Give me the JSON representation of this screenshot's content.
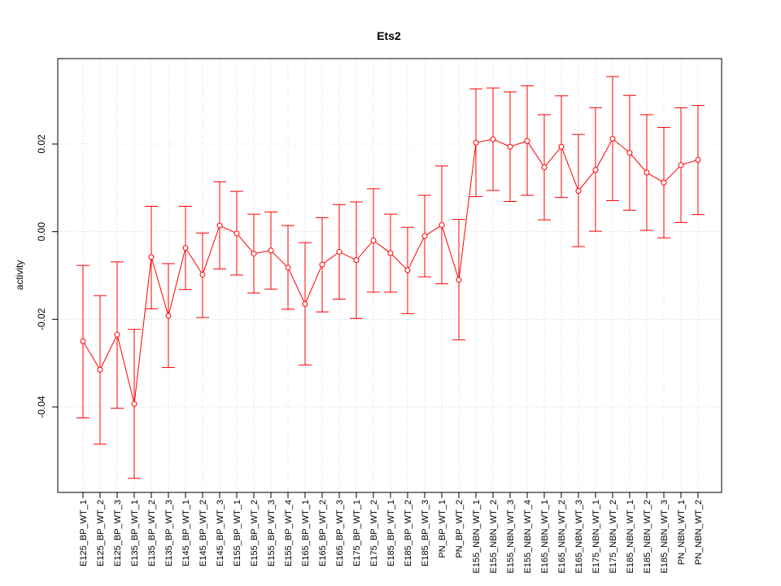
{
  "chart_data": {
    "type": "line",
    "title": "Ets2",
    "xlabel": "",
    "ylabel": "activity",
    "ylim": [
      -0.0595,
      0.0395
    ],
    "yticks": [
      -0.04,
      -0.02,
      0.0,
      0.02
    ],
    "ytick_labels": [
      "-0.04",
      "-0.02",
      "0.00",
      "0.02"
    ],
    "grid": true,
    "line_color": "#ff0000",
    "categories": [
      "E125_BP_WT_1",
      "E125_BP_WT_2",
      "E125_BP_WT_3",
      "E135_BP_WT_1",
      "E135_BP_WT_2",
      "E135_BP_WT_3",
      "E145_BP_WT_1",
      "E145_BP_WT_2",
      "E145_BP_WT_3",
      "E155_BP_WT_1",
      "E155_BP_WT_2",
      "E155_BP_WT_3",
      "E155_BP_WT_4",
      "E165_BP_WT_1",
      "E165_BP_WT_2",
      "E165_BP_WT_3",
      "E175_BP_WT_1",
      "E175_BP_WT_2",
      "E185_BP_WT_1",
      "E185_BP_WT_2",
      "E185_BP_WT_3",
      "PN_BP_WT_1",
      "PN_BP_WT_2",
      "E155_NBN_WT_1",
      "E155_NBN_WT_2",
      "E155_NBN_WT_3",
      "E155_NBN_WT_4",
      "E165_NBN_WT_1",
      "E165_NBN_WT_2",
      "E165_NBN_WT_3",
      "E175_NBN_WT_1",
      "E175_NBN_WT_2",
      "E185_NBN_WT_1",
      "E185_NBN_WT_2",
      "E185_NBN_WT_3",
      "PN_NBN_WT_1",
      "PN_NBN_WT_2"
    ],
    "values": [
      -0.025,
      -0.0315,
      -0.0235,
      -0.0393,
      -0.0058,
      -0.0192,
      -0.0037,
      -0.0098,
      0.0014,
      -0.0004,
      -0.005,
      -0.0043,
      -0.0082,
      -0.0165,
      -0.0075,
      -0.0046,
      -0.0065,
      -0.002,
      -0.0049,
      -0.0088,
      -0.001,
      0.0015,
      -0.011,
      0.0203,
      0.0211,
      0.0194,
      0.0207,
      0.0147,
      0.0194,
      0.0093,
      0.0141,
      0.0212,
      0.018,
      0.0135,
      0.0112,
      0.0152,
      0.0164
    ],
    "lower": [
      -0.0425,
      -0.0485,
      -0.0403,
      -0.0563,
      -0.0176,
      -0.031,
      -0.0132,
      -0.0196,
      -0.0085,
      -0.0099,
      -0.014,
      -0.0131,
      -0.0177,
      -0.0304,
      -0.0183,
      -0.0154,
      -0.0198,
      -0.0138,
      -0.0138,
      -0.0187,
      -0.0103,
      -0.0119,
      -0.0247,
      0.008,
      0.0094,
      0.0069,
      0.0083,
      0.0027,
      0.0078,
      -0.0034,
      0.0001,
      0.0071,
      0.0049,
      0.0003,
      -0.0014,
      0.0021,
      0.0039
    ],
    "upper": [
      -0.0077,
      -0.0146,
      -0.0069,
      -0.0223,
      0.0058,
      -0.0073,
      0.0058,
      -0.0003,
      0.0114,
      0.0092,
      0.004,
      0.0045,
      0.0014,
      -0.0025,
      0.0032,
      0.0062,
      0.0068,
      0.0098,
      0.004,
      0.001,
      0.0083,
      0.015,
      0.0028,
      0.0326,
      0.0328,
      0.0319,
      0.0333,
      0.0267,
      0.031,
      0.0222,
      0.0283,
      0.0354,
      0.0311,
      0.0267,
      0.0238,
      0.0283,
      0.0288
    ]
  }
}
